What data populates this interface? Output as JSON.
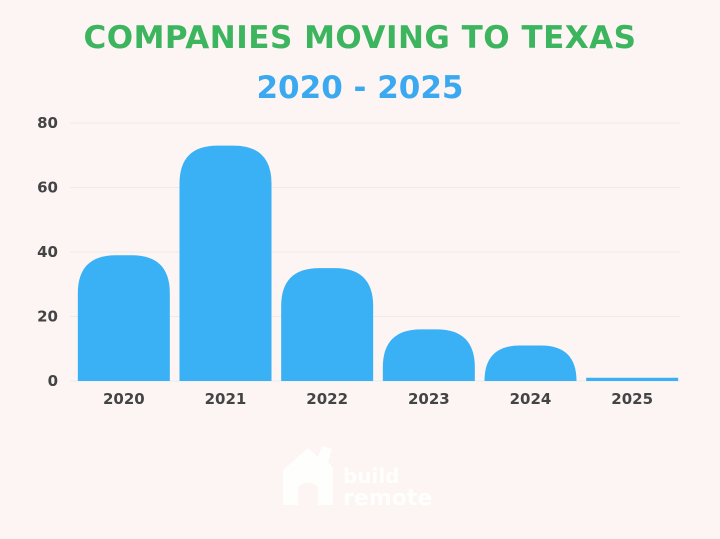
{
  "colors": {
    "background": "#fcf5f4",
    "title": "#3cb55e",
    "subtitle": "#3aa9f0",
    "bar": "#3ab0f5",
    "grid": "#ececec",
    "axis_text": "#444444",
    "watermark": "#ffffff"
  },
  "watermark": {
    "line1": "build",
    "line2": "remote",
    "icon": "house-logo-icon"
  },
  "chart_data": {
    "type": "bar",
    "title": "COMPANIES MOVING TO TEXAS",
    "subtitle": "2020 - 2025",
    "categories": [
      "2020",
      "2021",
      "2022",
      "2023",
      "2024",
      "2025"
    ],
    "values": [
      39,
      73,
      35,
      16,
      11,
      1
    ],
    "xlabel": "",
    "ylabel": "",
    "ylim": [
      0,
      80
    ],
    "yticks": [
      0,
      20,
      40,
      60,
      80
    ],
    "grid": true,
    "legend": "none"
  }
}
